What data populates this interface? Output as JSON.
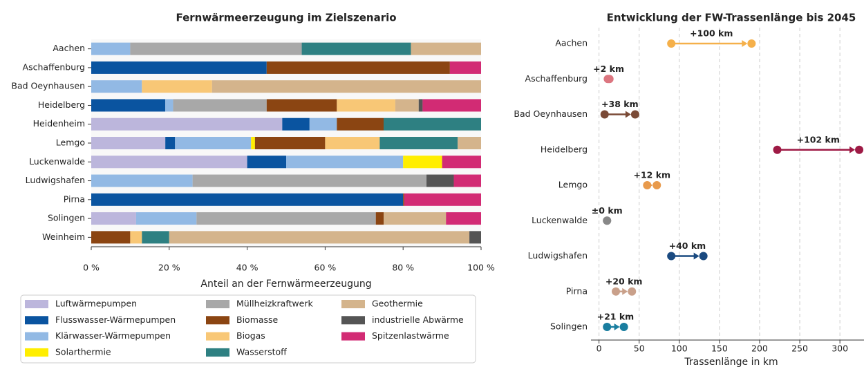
{
  "chart_data": [
    {
      "type": "bar",
      "orientation": "horizontal",
      "stacked": true,
      "title": "Fernwärmeerzeugung im Zielszenario",
      "xlabel": "Anteil an der Fernwärmeerzeugung",
      "categories": [
        "Aachen",
        "Aschaffenburg",
        "Bad Oeynhausen",
        "Heidelberg",
        "Heidenheim",
        "Lemgo",
        "Luckenwalde",
        "Ludwigshafen",
        "Pirna",
        "Solingen",
        "Weinheim"
      ],
      "series": [
        {
          "name": "Luftwärmepumpen",
          "color": "#bcb6dc",
          "values": [
            0,
            0,
            0,
            0,
            49,
            19,
            40,
            0,
            0,
            11.5,
            0
          ]
        },
        {
          "name": "Flusswasser-Wärmepumpen",
          "color": "#0a54a0",
          "values": [
            0,
            45,
            0,
            19,
            7,
            2.5,
            10,
            0,
            80,
            0,
            0
          ]
        },
        {
          "name": "Klärwasser-Wärmepumpen",
          "color": "#92b9e4",
          "values": [
            10,
            0,
            13,
            2,
            7,
            19.5,
            30,
            26,
            0,
            15.5,
            0
          ]
        },
        {
          "name": "Solarthermie",
          "color": "#ffee00",
          "values": [
            0,
            0,
            0,
            0,
            0,
            1,
            10,
            0,
            0,
            0,
            0
          ]
        },
        {
          "name": "Müllheizkraftwerk",
          "color": "#a8a8a8",
          "values": [
            44,
            0,
            0,
            24,
            0,
            0,
            0,
            60,
            0,
            46,
            0
          ]
        },
        {
          "name": "Biomasse",
          "color": "#8b4512",
          "values": [
            0,
            47,
            0,
            18,
            12,
            18,
            0,
            0,
            0.3,
            2,
            10
          ]
        },
        {
          "name": "Biogas",
          "color": "#f8c776",
          "values": [
            0,
            0,
            18,
            15,
            0,
            14,
            0,
            0,
            0,
            0,
            3
          ]
        },
        {
          "name": "Wasserstoff",
          "color": "#2e8082",
          "values": [
            28,
            0,
            0,
            0,
            25,
            20,
            0,
            0,
            0,
            0,
            7
          ]
        },
        {
          "name": "Geothermie",
          "color": "#d4b48c",
          "values": [
            18,
            0,
            69,
            6,
            0,
            6,
            0,
            0,
            0,
            16,
            77
          ]
        },
        {
          "name": "industrielle Abwärme",
          "color": "#555555",
          "values": [
            0,
            0,
            0,
            1,
            0,
            0,
            0,
            7,
            0,
            0,
            3
          ]
        },
        {
          "name": "Spitzenlastwärme",
          "color": "#d22b74",
          "values": [
            0,
            8,
            0,
            15,
            0,
            0,
            10,
            7,
            19.7,
            9,
            0
          ]
        }
      ],
      "xlim": [
        0,
        100
      ],
      "xticks": [
        {
          "value": 0,
          "label": "0 %"
        },
        {
          "value": 20,
          "label": "20 %"
        },
        {
          "value": 40,
          "label": "40 %"
        },
        {
          "value": 60,
          "label": "60 %"
        },
        {
          "value": 80,
          "label": "80 %"
        },
        {
          "value": 100,
          "label": "100 %"
        }
      ],
      "legend": "bottom",
      "legend_columns": 3
    },
    {
      "type": "dumbbell",
      "title": "Entwicklung der FW-Trassenlänge bis 2045",
      "xlabel": "Trassenlänge in km",
      "categories": [
        "Aachen",
        "Aschaffenburg",
        "Bad Oeynhausen",
        "Heidelberg",
        "Lemgo",
        "Luckenwalde",
        "Ludwigshafen",
        "Pirna",
        "Solingen"
      ],
      "start": [
        90,
        11,
        7,
        222,
        60,
        10,
        90,
        21,
        10
      ],
      "end": [
        190,
        13,
        45,
        324,
        72,
        10,
        130,
        41,
        31
      ],
      "colors": [
        "#f5b04a",
        "#dc7680",
        "#7a4a36",
        "#9e1a45",
        "#e89a4c",
        "#888888",
        "#1a4a80",
        "#c9a08a",
        "#1a7ea0"
      ],
      "annotations": [
        "+100 km",
        "+2 km",
        "+38 km",
        "+102 km",
        "+12 km",
        "±0 km",
        "+40 km",
        "+20 km",
        "+21 km"
      ],
      "xlim": [
        -10,
        330
      ],
      "xticks": [
        0,
        50,
        100,
        150,
        200,
        250,
        300
      ],
      "grid": true
    }
  ]
}
